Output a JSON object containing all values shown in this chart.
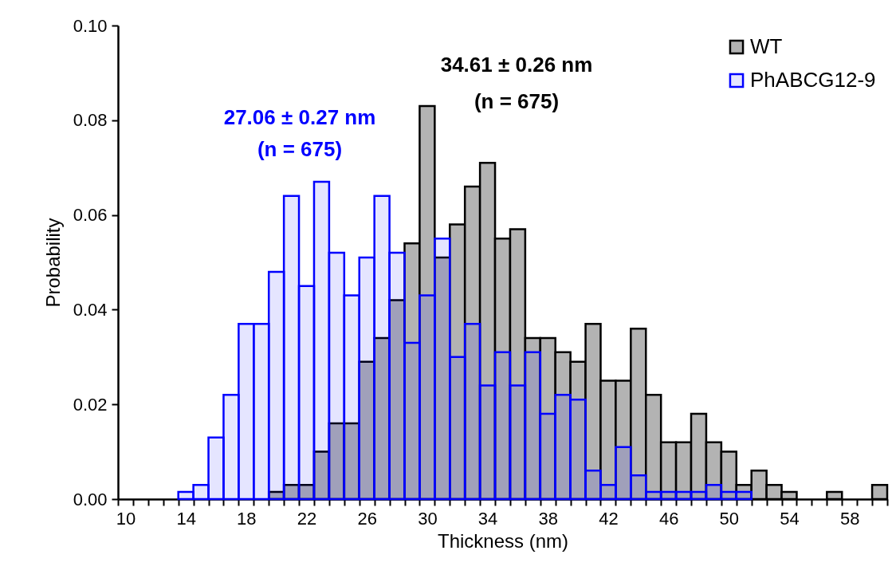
{
  "chart_data": {
    "type": "histogram",
    "xlabel": "Thickness (nm)",
    "ylabel": "Probability",
    "bins": [
      9.5,
      10.5,
      11.5,
      12.5,
      13.5,
      14.5,
      15.5,
      16.5,
      17.5,
      18.5,
      19.5,
      20.5,
      21.5,
      22.5,
      23.5,
      24.5,
      25.5,
      26.5,
      27.5,
      28.5,
      29.5,
      30.5,
      31.5,
      32.5,
      33.5,
      34.5,
      35.5,
      36.5,
      37.5,
      38.5,
      39.5,
      40.5,
      41.5,
      42.5,
      43.5,
      44.5,
      45.5,
      46.5,
      47.5,
      48.5,
      49.5,
      50.5,
      51.5,
      52.5,
      53.5,
      54.5,
      55.5,
      56.5,
      57.5,
      58.5,
      59.5,
      60.5
    ],
    "series": [
      {
        "name": "WT",
        "color": "#b3b3b3",
        "values": [
          0,
          0,
          0,
          0,
          0,
          0,
          0,
          0,
          0,
          0,
          0.0015,
          0.003,
          0.003,
          0.01,
          0.016,
          0.016,
          0.029,
          0.034,
          0.042,
          0.054,
          0.083,
          0.051,
          0.058,
          0.066,
          0.071,
          0.055,
          0.057,
          0.034,
          0.034,
          0.031,
          0.029,
          0.037,
          0.025,
          0.025,
          0.036,
          0.022,
          0.012,
          0.012,
          0.018,
          0.012,
          0.01,
          0.003,
          0.006,
          0.003,
          0.0015,
          0,
          0,
          0.0015,
          0,
          0,
          0.003
        ]
      },
      {
        "name": "PhABCG12-9",
        "color": "#0000ff",
        "values": [
          0,
          0,
          0,
          0,
          0.0015,
          0.003,
          0.013,
          0.022,
          0.037,
          0.037,
          0.048,
          0.064,
          0.045,
          0.067,
          0.052,
          0.043,
          0.051,
          0.064,
          0.052,
          0.033,
          0.043,
          0.055,
          0.03,
          0.037,
          0.024,
          0.031,
          0.024,
          0.031,
          0.018,
          0.022,
          0.021,
          0.006,
          0.003,
          0.011,
          0.005,
          0.0015,
          0.0015,
          0.0015,
          0.0015,
          0.003,
          0.0015,
          0.0015,
          0,
          0,
          0,
          0,
          0,
          0,
          0,
          0,
          0
        ]
      }
    ],
    "annotations": [
      "34.61 ± 0.26 nm",
      "(n = 675)",
      "27.06 ± 0.27 nm",
      "(n = 675)"
    ],
    "xlim": [
      9.5,
      60.5
    ],
    "xticks": [
      10,
      14,
      18,
      22,
      26,
      30,
      34,
      38,
      42,
      46,
      50,
      54,
      58,
      {
        "value": 9.5,
        "label": null
      },
      {
        "value": 10.5,
        "label": null
      },
      {
        "value": 11.5,
        "label": null
      },
      {
        "value": 12.5,
        "label": null
      },
      {
        "value": 13.5,
        "label": null
      },
      {
        "value": 14.5,
        "label": null
      },
      {
        "value": 15.5,
        "label": null
      },
      {
        "value": 16.5,
        "label": null
      },
      {
        "value": 17.5,
        "label": null
      },
      {
        "value": 18.5,
        "label": null
      },
      {
        "value": 19.5,
        "label": null
      },
      {
        "value": 20.5,
        "label": null
      },
      {
        "value": 21.5,
        "label": null
      },
      {
        "value": 22.5,
        "label": null
      },
      {
        "value": 23.5,
        "label": null
      },
      {
        "value": 24.5,
        "label": null
      },
      {
        "value": 25.5,
        "label": null
      },
      {
        "value": 26.5,
        "label": null
      },
      {
        "value": 27.5,
        "label": null
      },
      {
        "value": 28.5,
        "label": null
      },
      {
        "value": 29.5,
        "label": null
      },
      {
        "value": 30.5,
        "label": null
      },
      {
        "value": 31.5,
        "label": null
      },
      {
        "value": 32.5,
        "label": null
      },
      {
        "value": 33.5,
        "label": null
      },
      {
        "value": 34.5,
        "label": null
      },
      {
        "value": 35.5,
        "label": null
      },
      {
        "value": 36.5,
        "label": null
      },
      {
        "value": 37.5,
        "label": null
      },
      {
        "value": 38.5,
        "label": null
      },
      {
        "value": 39.5,
        "label": null
      },
      {
        "value": 40.5,
        "label": null
      },
      {
        "value": 41.5,
        "label": null
      },
      {
        "value": 42.5,
        "label": null
      },
      {
        "value": 43.5,
        "label": null
      },
      {
        "value": 44.5,
        "label": null
      },
      {
        "value": 45.5,
        "label": null
      },
      {
        "value": 46.5,
        "label": null
      },
      {
        "value": 47.5,
        "label": null
      },
      {
        "value": 48.5,
        "label": null
      },
      {
        "value": 49.5,
        "label": null
      },
      {
        "value": 50.5,
        "label": null
      },
      {
        "value": 51.5,
        "label": null
      },
      {
        "value": 52.5,
        "label": null
      },
      {
        "value": 53.5,
        "label": null
      },
      {
        "value": 54.5,
        "label": null
      },
      {
        "value": 55.5,
        "label": null
      },
      {
        "value": 56.5,
        "label": null
      },
      {
        "value": 57.5,
        "label": null
      },
      {
        "value": 58.5,
        "label": null
      },
      {
        "value": 59.5,
        "label": null
      },
      {
        "value": 60.5,
        "label": null
      }
    ],
    "ylim": [
      0,
      0.1
    ],
    "yticks": [
      {
        "value": 0,
        "label": "0.00"
      },
      {
        "value": 0.02,
        "label": "0.02"
      },
      {
        "value": 0.04,
        "label": "0.04"
      },
      {
        "value": 0.06,
        "label": "0.06"
      },
      {
        "value": 0.08,
        "label": "0.08"
      },
      {
        "value": 0.1,
        "label": "0.10"
      }
    ],
    "grid": false,
    "legend": "top right"
  }
}
